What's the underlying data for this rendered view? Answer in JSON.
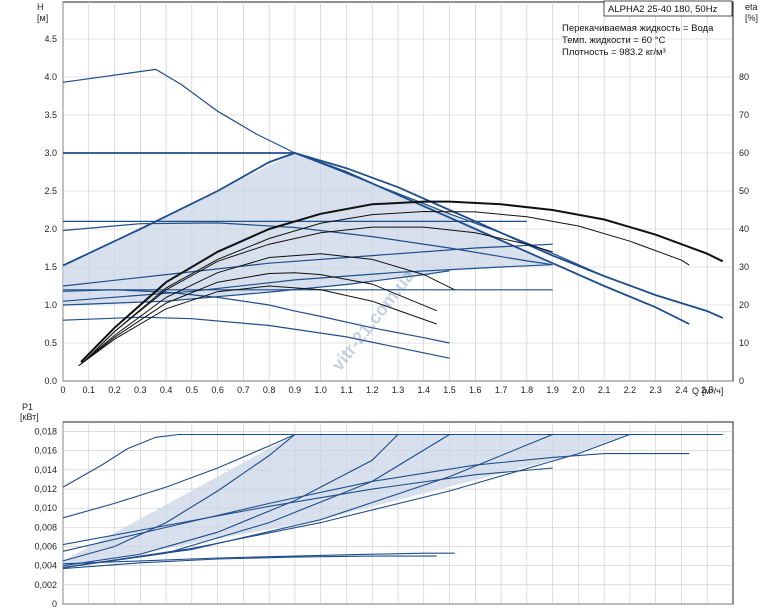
{
  "title": "ALPHA2 25-40 180, 50Hz",
  "conditions": {
    "liquid": "Перекачиваемая жидкость = Вода",
    "temp": "Темп. жидкости = 60 °C",
    "density": "Плотность = 983.2 кг/м³"
  },
  "watermark": "vitr-21.com.ua",
  "chart_data": [
    {
      "type": "line",
      "name": "head",
      "ylabel": "H",
      "yunit": "[м]",
      "y2label": "eta",
      "y2unit": "[%]",
      "xlabel": "Q",
      "xunit": "[м³/ч]",
      "xlim": [
        0,
        2.6
      ],
      "ylim": [
        0,
        4.5
      ],
      "y2lim": [
        0,
        90
      ],
      "xticks": [
        "0",
        "0.1",
        "0.2",
        "0.3",
        "0.4",
        "0.5",
        "0.6",
        "0.7",
        "0.8",
        "0.9",
        "1.0",
        "1.1",
        "1.2",
        "1.3",
        "1.4",
        "1.5",
        "1.6",
        "1.7",
        "1.8",
        "1.9",
        "2.0",
        "2.1",
        "2.2",
        "2.3",
        "2.4",
        "2.5"
      ],
      "yticks": [
        "0.0",
        "0.5",
        "1.0",
        "1.5",
        "2.0",
        "2.5",
        "3.0",
        "3.5",
        "4.0",
        "4.5"
      ],
      "y2ticks": [
        "0",
        "10",
        "20",
        "30",
        "40",
        "50",
        "60",
        "70",
        "80"
      ],
      "head_series": [
        {
          "x": [
            0,
            0.36,
            0.46,
            0.6,
            0.75,
            0.9,
            1.05,
            1.2,
            1.35,
            1.5,
            1.7,
            1.9,
            2.1,
            2.3,
            2.5,
            2.56
          ],
          "y": [
            3.93,
            4.1,
            3.9,
            3.55,
            3.25,
            3.0,
            2.8,
            2.6,
            2.4,
            2.2,
            1.95,
            1.68,
            1.38,
            1.13,
            0.92,
            0.83
          ]
        },
        {
          "x": [
            0,
            0.9,
            1.1,
            1.3,
            1.5,
            1.7,
            1.9,
            2.1,
            2.3,
            2.5,
            2.56
          ],
          "y": [
            3.0,
            3.0,
            2.8,
            2.55,
            2.25,
            1.95,
            1.65,
            1.38,
            1.13,
            0.92,
            0.83
          ]
        },
        {
          "x": [
            0,
            0.3,
            0.6,
            0.8,
            0.9,
            1.1,
            1.3,
            1.5,
            1.7,
            1.9,
            2.1,
            2.3,
            2.43
          ],
          "y": [
            1.52,
            2.0,
            2.5,
            2.88,
            3.0,
            2.75,
            2.45,
            2.15,
            1.85,
            1.55,
            1.25,
            0.97,
            0.75
          ]
        },
        {
          "x": [
            0,
            0.4,
            0.9,
            1.2,
            1.5,
            1.8
          ],
          "y": [
            2.1,
            2.1,
            2.1,
            2.1,
            2.1,
            2.1
          ]
        },
        {
          "x": [
            0,
            0.3,
            0.6,
            0.9,
            1.2,
            1.5,
            1.8,
            1.9
          ],
          "y": [
            1.98,
            2.07,
            2.08,
            2.02,
            1.9,
            1.75,
            1.58,
            1.53
          ]
        },
        {
          "x": [
            0,
            1.9
          ],
          "y": [
            1.2,
            1.2
          ]
        },
        {
          "x": [
            0,
            0.2,
            0.4,
            0.6,
            0.8,
            0.9,
            1.0,
            1.2,
            1.4,
            1.5
          ],
          "y": [
            1.18,
            1.2,
            1.17,
            1.1,
            1.0,
            0.92,
            0.85,
            0.7,
            0.57,
            0.5
          ]
        },
        {
          "x": [
            0,
            0.3,
            0.5,
            0.8,
            1.1,
            1.3,
            1.5
          ],
          "y": [
            0.8,
            0.84,
            0.82,
            0.73,
            0.58,
            0.44,
            0.3
          ]
        },
        {
          "x": [
            0,
            0.4,
            0.8,
            1.1,
            1.4,
            1.5
          ],
          "y": [
            1.0,
            1.05,
            1.17,
            1.27,
            1.4,
            1.45
          ]
        },
        {
          "x": [
            0,
            0.5,
            0.9,
            1.3,
            1.7,
            1.9
          ],
          "y": [
            1.05,
            1.18,
            1.33,
            1.43,
            1.5,
            1.53
          ]
        },
        {
          "x": [
            0,
            0.4,
            0.8,
            1.2,
            1.6,
            1.9
          ],
          "y": [
            1.25,
            1.4,
            1.55,
            1.65,
            1.75,
            1.8
          ]
        }
      ],
      "eta_series": [
        {
          "x": [
            0.07,
            0.2,
            0.4,
            0.6,
            0.8,
            1.0,
            1.2,
            1.4,
            1.5,
            1.7,
            1.9,
            2.1,
            2.3,
            2.5,
            2.56
          ],
          "y": [
            5,
            14,
            26,
            34,
            40,
            44,
            46.5,
            47.2,
            47.2,
            46.5,
            45,
            42.5,
            38.5,
            33.5,
            31.5
          ]
        },
        {
          "x": [
            0.08,
            0.2,
            0.4,
            0.6,
            0.8,
            1.0,
            1.2,
            1.4,
            1.6,
            1.8,
            2.0,
            2.2,
            2.4,
            2.43
          ],
          "y": [
            5,
            13,
            24.5,
            32,
            37.5,
            41.5,
            43.8,
            44.6,
            44.5,
            43.2,
            40.8,
            36.8,
            31.8,
            30.5
          ]
        },
        {
          "x": [
            0.08,
            0.2,
            0.4,
            0.6,
            0.8,
            1.0,
            1.2,
            1.4,
            1.6,
            1.8,
            1.9
          ],
          "y": [
            5,
            13,
            24,
            31.5,
            36,
            39,
            40.5,
            40.5,
            39,
            36,
            34
          ]
        },
        {
          "x": [
            0.07,
            0.2,
            0.4,
            0.6,
            0.8,
            1.0,
            1.2,
            1.4,
            1.52
          ],
          "y": [
            4.5,
            12,
            22,
            28.5,
            32.5,
            33.5,
            32,
            28,
            24
          ]
        },
        {
          "x": [
            0.07,
            0.2,
            0.4,
            0.6,
            0.8,
            0.9,
            1.0,
            1.2,
            1.45
          ],
          "y": [
            4.5,
            11.5,
            20.5,
            26,
            28.3,
            28.5,
            28,
            25.5,
            18.5
          ]
        },
        {
          "x": [
            0.06,
            0.2,
            0.4,
            0.6,
            0.8,
            1.0,
            1.2,
            1.45
          ],
          "y": [
            4,
            11,
            19,
            23.5,
            25,
            24,
            21,
            15
          ]
        }
      ]
    },
    {
      "type": "line",
      "name": "power",
      "ylabel": "P1",
      "yunit": "[кВт]",
      "xlim": [
        0,
        2.6
      ],
      "ylim": [
        0,
        0.019
      ],
      "yticks": [
        "0",
        "0,002",
        "0,004",
        "0,006",
        "0,008",
        "0,010",
        "0,012",
        "0,014",
        "0,016",
        "0,018"
      ],
      "series": [
        {
          "x": [
            0,
            0.15,
            0.25,
            0.36,
            0.45,
            2.56
          ],
          "y": [
            0.0122,
            0.0145,
            0.0162,
            0.0174,
            0.0177,
            0.0177
          ]
        },
        {
          "x": [
            0,
            0.2,
            0.4,
            0.6,
            0.8,
            0.9,
            2.56
          ],
          "y": [
            0.009,
            0.0105,
            0.0122,
            0.0142,
            0.0165,
            0.0177,
            0.0177
          ]
        },
        {
          "x": [
            0,
            0.2,
            0.4,
            0.6,
            0.8,
            0.9
          ],
          "y": [
            0.0045,
            0.006,
            0.0085,
            0.0118,
            0.0155,
            0.0177
          ]
        },
        {
          "x": [
            0,
            0.3,
            0.6,
            0.9,
            1.2,
            1.3
          ],
          "y": [
            0.004,
            0.0052,
            0.0075,
            0.0108,
            0.015,
            0.0177
          ]
        },
        {
          "x": [
            0,
            0.4,
            0.8,
            1.2,
            1.5
          ],
          "y": [
            0.0038,
            0.0053,
            0.0085,
            0.0128,
            0.0177
          ]
        },
        {
          "x": [
            0,
            0.5,
            1.0,
            1.5,
            1.9
          ],
          "y": [
            0.0038,
            0.0057,
            0.0088,
            0.0133,
            0.0177
          ]
        },
        {
          "x": [
            0,
            0.5,
            1.0,
            1.5,
            2.0,
            2.2
          ],
          "y": [
            0.0038,
            0.0058,
            0.0085,
            0.0118,
            0.0157,
            0.0177
          ]
        },
        {
          "x": [
            0,
            0.4,
            0.8,
            1.2,
            1.6,
            1.9,
            2.1,
            2.43
          ],
          "y": [
            0.0055,
            0.008,
            0.0105,
            0.0128,
            0.0145,
            0.0153,
            0.0157,
            0.0157
          ]
        },
        {
          "x": [
            0,
            0.3,
            0.6,
            0.9,
            1.2,
            1.4,
            1.52
          ],
          "y": [
            0.0042,
            0.0045,
            0.0048,
            0.005,
            0.0052,
            0.0053,
            0.0053
          ]
        },
        {
          "x": [
            0,
            0.3,
            0.6,
            0.9,
            1.2,
            1.45
          ],
          "y": [
            0.0037,
            0.0043,
            0.0047,
            0.0049,
            0.005,
            0.005
          ]
        },
        {
          "x": [
            0,
            0.4,
            0.8,
            1.2,
            1.6,
            1.9
          ],
          "y": [
            0.0062,
            0.0082,
            0.0102,
            0.012,
            0.0135,
            0.0142
          ]
        }
      ]
    }
  ]
}
